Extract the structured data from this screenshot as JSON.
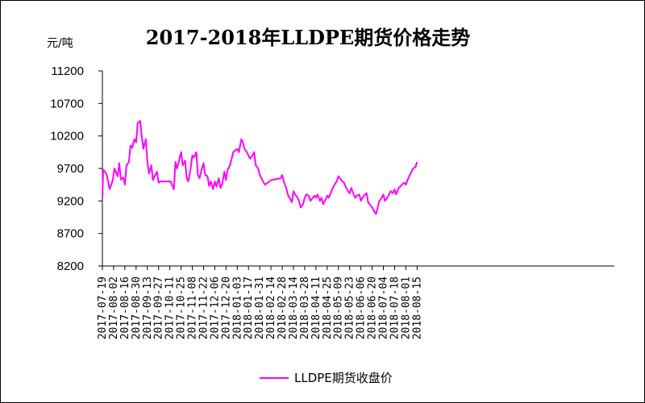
{
  "chart_data": {
    "type": "line",
    "title": "2017-2018年LLDPE期货价格走势",
    "ylabel": "元/吨",
    "xlabel": "",
    "ylim": [
      8200,
      11200
    ],
    "yticks": [
      11200,
      10700,
      10200,
      9700,
      9200,
      8700,
      8200
    ],
    "yticks_text": [
      "11200",
      "10700",
      "10200",
      "9700",
      "9200",
      "8700",
      "8200"
    ],
    "grid": false,
    "legend_position": "bottom",
    "categories": [
      "2017-07-19",
      "2017-08-02",
      "2017-08-16",
      "2017-08-30",
      "2017-09-13",
      "2017-09-27",
      "2017-10-11",
      "2017-10-25",
      "2017-11-08",
      "2017-11-22",
      "2017-12-06",
      "2017-12-20",
      "2018-01-03",
      "2018-01-17",
      "2018-01-31",
      "2018-02-14",
      "2018-02-28",
      "2018-03-14",
      "2018-03-28",
      "2018-04-11",
      "2018-04-25",
      "2018-05-09",
      "2018-05-23",
      "2018-06-06",
      "2018-06-20",
      "2018-07-04",
      "2018-07-18",
      "2018-08-01",
      "2018-08-15"
    ],
    "series": [
      {
        "name": "LLDPE期货收盘价",
        "color": "#ff00ff",
        "x": [
          "2017-07-19",
          "2017-07-20",
          "2017-07-24",
          "2017-07-26",
          "2017-07-28",
          "2017-08-01",
          "2017-08-03",
          "2017-08-07",
          "2017-08-09",
          "2017-08-11",
          "2017-08-14",
          "2017-08-16",
          "2017-08-18",
          "2017-08-21",
          "2017-08-23",
          "2017-08-25",
          "2017-08-28",
          "2017-08-30",
          "2017-09-01",
          "2017-09-04",
          "2017-09-06",
          "2017-09-08",
          "2017-09-11",
          "2017-09-13",
          "2017-09-15",
          "2017-09-18",
          "2017-09-20",
          "2017-09-22",
          "2017-09-25",
          "2017-09-27",
          "2017-09-29",
          "2017-10-10",
          "2017-10-12",
          "2017-10-16",
          "2017-10-18",
          "2017-10-20",
          "2017-10-23",
          "2017-10-25",
          "2017-10-27",
          "2017-10-30",
          "2017-11-01",
          "2017-11-03",
          "2017-11-06",
          "2017-11-08",
          "2017-11-10",
          "2017-11-13",
          "2017-11-15",
          "2017-11-17",
          "2017-11-20",
          "2017-11-22",
          "2017-11-24",
          "2017-11-27",
          "2017-11-29",
          "2017-12-01",
          "2017-12-04",
          "2017-12-06",
          "2017-12-08",
          "2017-12-11",
          "2017-12-13",
          "2017-12-15",
          "2017-12-18",
          "2017-12-20",
          "2017-12-22",
          "2017-12-25",
          "2017-12-27",
          "2017-12-29",
          "2018-01-03",
          "2018-01-05",
          "2018-01-08",
          "2018-01-10",
          "2018-01-12",
          "2018-01-15",
          "2018-01-17",
          "2018-01-19",
          "2018-01-22",
          "2018-01-24",
          "2018-01-26",
          "2018-01-29",
          "2018-01-31",
          "2018-02-02",
          "2018-02-05",
          "2018-02-07",
          "2018-02-09",
          "2018-02-12",
          "2018-02-14",
          "2018-02-26",
          "2018-02-28",
          "2018-03-02",
          "2018-03-05",
          "2018-03-07",
          "2018-03-09",
          "2018-03-12",
          "2018-03-14",
          "2018-03-16",
          "2018-03-19",
          "2018-03-21",
          "2018-03-23",
          "2018-03-26",
          "2018-03-28",
          "2018-03-30",
          "2018-04-02",
          "2018-04-04",
          "2018-04-09",
          "2018-04-11",
          "2018-04-13",
          "2018-04-16",
          "2018-04-18",
          "2018-04-20",
          "2018-04-23",
          "2018-04-25",
          "2018-04-27",
          "2018-05-02",
          "2018-05-04",
          "2018-05-07",
          "2018-05-09",
          "2018-05-11",
          "2018-05-14",
          "2018-05-16",
          "2018-05-18",
          "2018-05-21",
          "2018-05-23",
          "2018-05-25",
          "2018-05-28",
          "2018-05-30",
          "2018-06-01",
          "2018-06-04",
          "2018-06-06",
          "2018-06-08",
          "2018-06-11",
          "2018-06-13",
          "2018-06-15",
          "2018-06-20",
          "2018-06-22",
          "2018-06-25",
          "2018-06-27",
          "2018-06-29",
          "2018-07-02",
          "2018-07-04",
          "2018-07-06",
          "2018-07-09",
          "2018-07-11",
          "2018-07-13",
          "2018-07-16",
          "2018-07-18",
          "2018-07-20",
          "2018-07-23",
          "2018-07-25",
          "2018-07-27",
          "2018-07-30",
          "2018-08-01",
          "2018-08-03",
          "2018-08-06",
          "2018-08-08",
          "2018-08-10",
          "2018-08-13",
          "2018-08-15"
        ],
        "values": [
          9250,
          9680,
          9620,
          9500,
          9380,
          9520,
          9700,
          9580,
          9780,
          9530,
          9560,
          9450,
          9750,
          9800,
          10050,
          10020,
          10150,
          10100,
          10400,
          10430,
          10200,
          10000,
          10150,
          9800,
          9620,
          9750,
          9520,
          9580,
          9650,
          9480,
          9500,
          9500,
          9500,
          9380,
          9800,
          9700,
          9850,
          9950,
          9750,
          9820,
          9550,
          9500,
          9700,
          9900,
          9870,
          9950,
          9600,
          9550,
          9700,
          9780,
          9600,
          9580,
          9430,
          9500,
          9380,
          9500,
          9420,
          9550,
          9400,
          9450,
          9650,
          9520,
          9680,
          9750,
          9850,
          9950,
          10000,
          9950,
          10150,
          10100,
          10000,
          9950,
          9900,
          9850,
          9900,
          9950,
          9750,
          9700,
          9600,
          9550,
          9480,
          9450,
          9470,
          9500,
          9520,
          9550,
          9600,
          9500,
          9400,
          9300,
          9250,
          9180,
          9350,
          9300,
          9250,
          9200,
          9100,
          9150,
          9250,
          9300,
          9280,
          9200,
          9280,
          9250,
          9300,
          9200,
          9250,
          9150,
          9220,
          9280,
          9250,
          9400,
          9450,
          9500,
          9580,
          9550,
          9500,
          9480,
          9420,
          9350,
          9320,
          9400,
          9300,
          9250,
          9280,
          9300,
          9200,
          9250,
          9300,
          9320,
          9180,
          9100,
          9050,
          9000,
          9100,
          9200,
          9250,
          9300,
          9200,
          9250,
          9300,
          9350,
          9320,
          9380,
          9300,
          9400,
          9420,
          9450,
          9480,
          9450,
          9520,
          9600,
          9650,
          9700,
          9720,
          9800
        ]
      }
    ]
  }
}
